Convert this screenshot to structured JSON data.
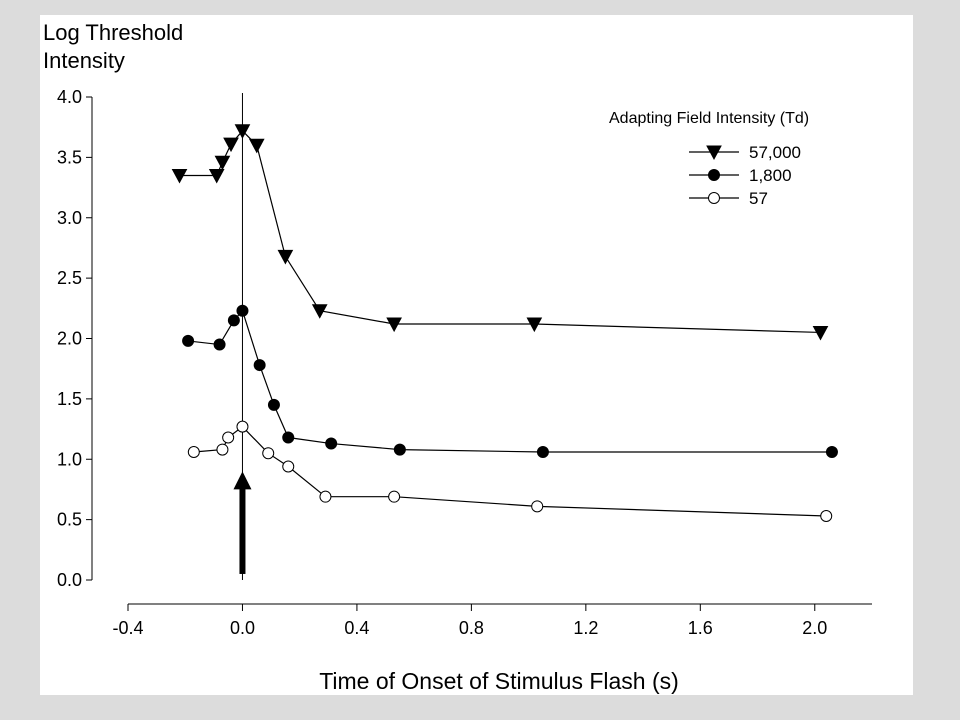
{
  "chart_data": {
    "type": "line",
    "ylabel_lines": [
      "Log Threshold",
      "Intensity"
    ],
    "xlabel": "Time of Onset of Stimulus Flash (s)",
    "legend_title": "Adapting Field Intensity (Td)",
    "legend_placement": "top-right",
    "grid": false,
    "xlim": [
      -0.4,
      2.2
    ],
    "ylim": [
      0.0,
      4.0
    ],
    "x_ticks": [
      -0.4,
      0.0,
      0.4,
      0.8,
      1.2,
      1.6,
      2.0
    ],
    "x_tick_labels": [
      "-0.4",
      "0.0",
      "0.4",
      "0.8",
      "1.2",
      "1.6",
      "2.0"
    ],
    "y_ticks": [
      0.0,
      0.5,
      1.0,
      1.5,
      2.0,
      2.5,
      3.0,
      3.5,
      4.0
    ],
    "y_tick_labels": [
      "0.0",
      "0.5",
      "1.0",
      "1.5",
      "2.0",
      "2.5",
      "3.0",
      "3.5",
      "4.0"
    ],
    "reference_line_x": 0.0,
    "arrow": {
      "x": 0.0,
      "y_from": 0.05,
      "y_to": 0.9
    },
    "series": [
      {
        "name": "57,000",
        "marker": "triangle-down",
        "fill": "#000000",
        "x": [
          -0.22,
          -0.09,
          -0.07,
          -0.04,
          0.0,
          0.05,
          0.15,
          0.27,
          0.53,
          1.02,
          2.02
        ],
        "y": [
          3.35,
          3.35,
          3.46,
          3.61,
          3.72,
          3.6,
          2.68,
          2.23,
          2.12,
          2.12,
          2.05
        ]
      },
      {
        "name": "1,800",
        "marker": "circle",
        "fill": "#000000",
        "x": [
          -0.19,
          -0.08,
          -0.03,
          0.0,
          0.06,
          0.11,
          0.16,
          0.31,
          0.55,
          1.05,
          2.06
        ],
        "y": [
          1.98,
          1.95,
          2.15,
          2.23,
          1.78,
          1.45,
          1.18,
          1.13,
          1.08,
          1.06,
          1.06
        ]
      },
      {
        "name": "57",
        "marker": "circle",
        "fill": "#ffffff",
        "x": [
          -0.17,
          -0.07,
          -0.05,
          0.0,
          0.09,
          0.16,
          0.29,
          0.53,
          1.03,
          2.04
        ],
        "y": [
          1.06,
          1.08,
          1.18,
          1.27,
          1.05,
          0.94,
          0.69,
          0.69,
          0.61,
          0.53
        ]
      }
    ]
  }
}
